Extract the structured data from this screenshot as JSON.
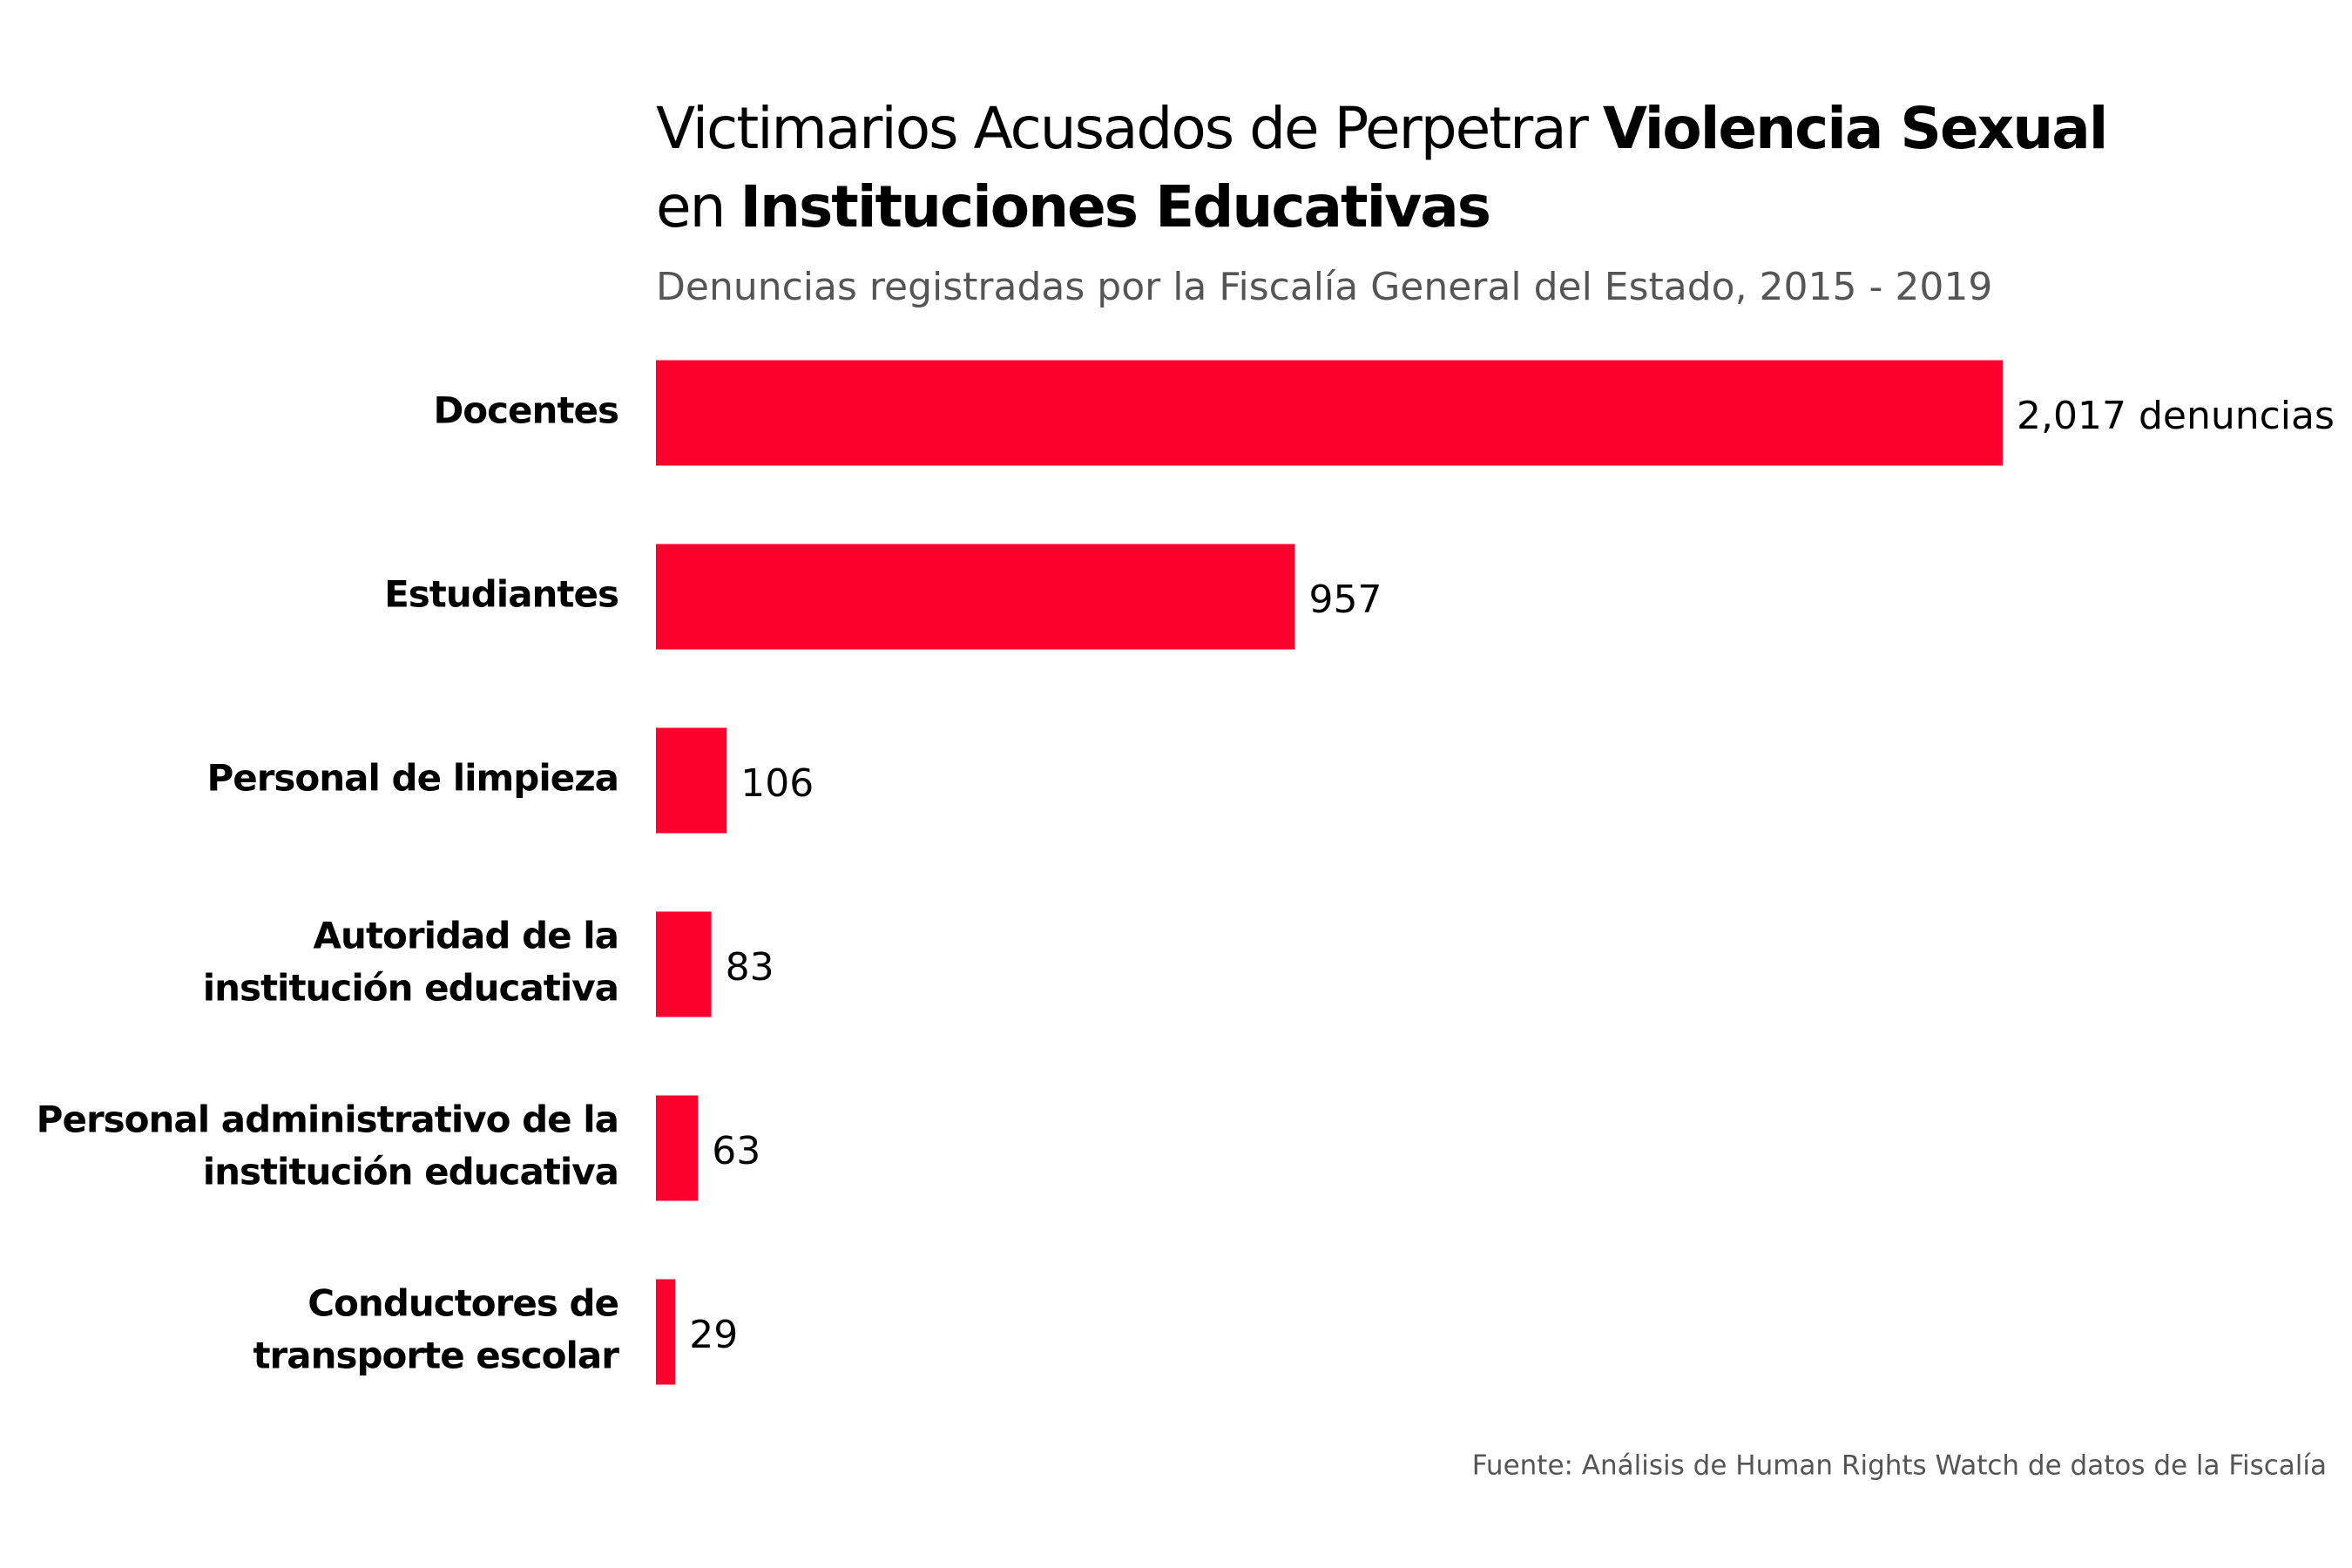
{
  "chart_data": {
    "type": "hbar",
    "title": [
      {
        "text": "Victimarios Acusados de Perpetrar",
        "bold": false
      },
      {
        "text": "Violencia Sexual",
        "bold": true
      },
      {
        "text": "en",
        "bold": false,
        "newline": true
      },
      {
        "text": "Instituciones Educativas",
        "bold": true
      }
    ],
    "subtitle": "Denuncias registradas por la Fiscalía General del Estado, 2015 - 2019",
    "categories": [
      [
        "Docentes"
      ],
      [
        "Estudiantes"
      ],
      [
        "Personal de limpieza"
      ],
      [
        "Autoridad de la",
        "institución educativa"
      ],
      [
        "Personal administrativo de la",
        "institución educativa"
      ],
      [
        "Conductores de",
        "transporte escolar"
      ]
    ],
    "values": [
      2017,
      957,
      106,
      83,
      63,
      29
    ],
    "value_labels": [
      "2,017 denuncias",
      "957",
      "106",
      "83",
      "63",
      "29"
    ],
    "color": "#fe002e",
    "source": "Fuente: Análisis de Human Rights Watch de datos de la Fiscalía"
  }
}
